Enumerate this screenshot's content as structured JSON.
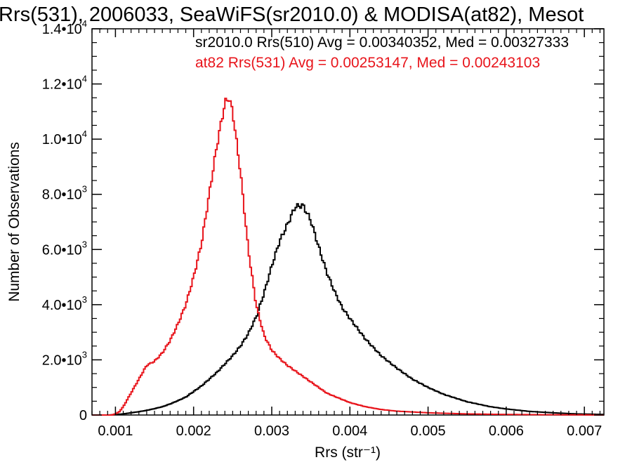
{
  "chart_data": {
    "type": "line",
    "title": "Rrs(531), 2006033, SeaWiFS(sr2010.0) & MODISA(at82), Mesot",
    "xlabel": "Rrs (str⁻¹)",
    "ylabel": "Number of Observations",
    "xlim": [
      0.0007,
      0.00725
    ],
    "ylim": [
      0,
      14000
    ],
    "x_ticks": [
      0.001,
      0.002,
      0.003,
      0.004,
      0.005,
      0.006,
      0.007
    ],
    "x_tick_labels": [
      "0.001",
      "0.002",
      "0.003",
      "0.004",
      "0.005",
      "0.006",
      "0.007"
    ],
    "y_ticks": [
      0,
      2000,
      4000,
      6000,
      8000,
      10000,
      12000,
      14000
    ],
    "y_tick_labels": [
      {
        "base": "0",
        "exp": ""
      },
      {
        "base": "2.0•10",
        "exp": "3"
      },
      {
        "base": "4.0•10",
        "exp": "3"
      },
      {
        "base": "6.0•10",
        "exp": "3"
      },
      {
        "base": "8.0•10",
        "exp": "3"
      },
      {
        "base": "1.0•10",
        "exp": "4"
      },
      {
        "base": "1.2•10",
        "exp": "4"
      },
      {
        "base": "1.4•10",
        "exp": "4"
      }
    ],
    "grid": false,
    "legend_position": "top-right",
    "series": [
      {
        "name": "sr2010.0 Rrs(510) Avg = 0.00340352, Med = 0.00327333",
        "color": "#000000",
        "x": [
          0.0007,
          0.0009,
          0.001,
          0.0011,
          0.0012,
          0.0013,
          0.0014,
          0.0015,
          0.0016,
          0.0017,
          0.0018,
          0.0019,
          0.002,
          0.0021,
          0.0022,
          0.0023,
          0.0024,
          0.0025,
          0.0026,
          0.0027,
          0.0028,
          0.0029,
          0.003,
          0.0031,
          0.0032,
          0.0033,
          0.0034,
          0.0035,
          0.0036,
          0.0037,
          0.0038,
          0.0039,
          0.004,
          0.0042,
          0.0044,
          0.0046,
          0.0048,
          0.005,
          0.0052,
          0.0055,
          0.0058,
          0.006,
          0.0063,
          0.0066,
          0.0069,
          0.00725
        ],
        "y": [
          0,
          0,
          15,
          40,
          80,
          120,
          170,
          230,
          300,
          400,
          520,
          650,
          850,
          1050,
          1300,
          1550,
          1850,
          2150,
          2500,
          2950,
          3550,
          4400,
          5400,
          6300,
          6900,
          7550,
          7600,
          7050,
          6100,
          5200,
          4500,
          3900,
          3500,
          2750,
          2150,
          1700,
          1300,
          1000,
          750,
          480,
          300,
          220,
          130,
          80,
          40,
          20
        ]
      },
      {
        "name": "at82 Rrs(531) Avg = 0.00253147, Med = 0.00243103",
        "color": "#e8141b",
        "x": [
          0.0007,
          0.00095,
          0.001,
          0.00105,
          0.0011,
          0.00115,
          0.0012,
          0.0013,
          0.0014,
          0.0015,
          0.0016,
          0.0017,
          0.0018,
          0.0019,
          0.002,
          0.0021,
          0.0022,
          0.0023,
          0.0024,
          0.00245,
          0.0025,
          0.0026,
          0.0027,
          0.0028,
          0.0029,
          0.003,
          0.0031,
          0.0032,
          0.0033,
          0.0034,
          0.0035,
          0.0036,
          0.0037,
          0.0038,
          0.004,
          0.0042,
          0.0044,
          0.0046,
          0.005,
          0.0055,
          0.006,
          0.0065,
          0.007,
          0.00725
        ],
        "y": [
          0,
          0,
          40,
          120,
          300,
          550,
          800,
          1300,
          1800,
          1950,
          2250,
          2700,
          3300,
          4000,
          5000,
          6200,
          8000,
          9800,
          11300,
          11500,
          11000,
          8800,
          6000,
          4000,
          2900,
          2350,
          2050,
          1800,
          1600,
          1400,
          1200,
          1000,
          800,
          680,
          450,
          300,
          200,
          140,
          80,
          40,
          20,
          10,
          5,
          0
        ]
      }
    ]
  }
}
